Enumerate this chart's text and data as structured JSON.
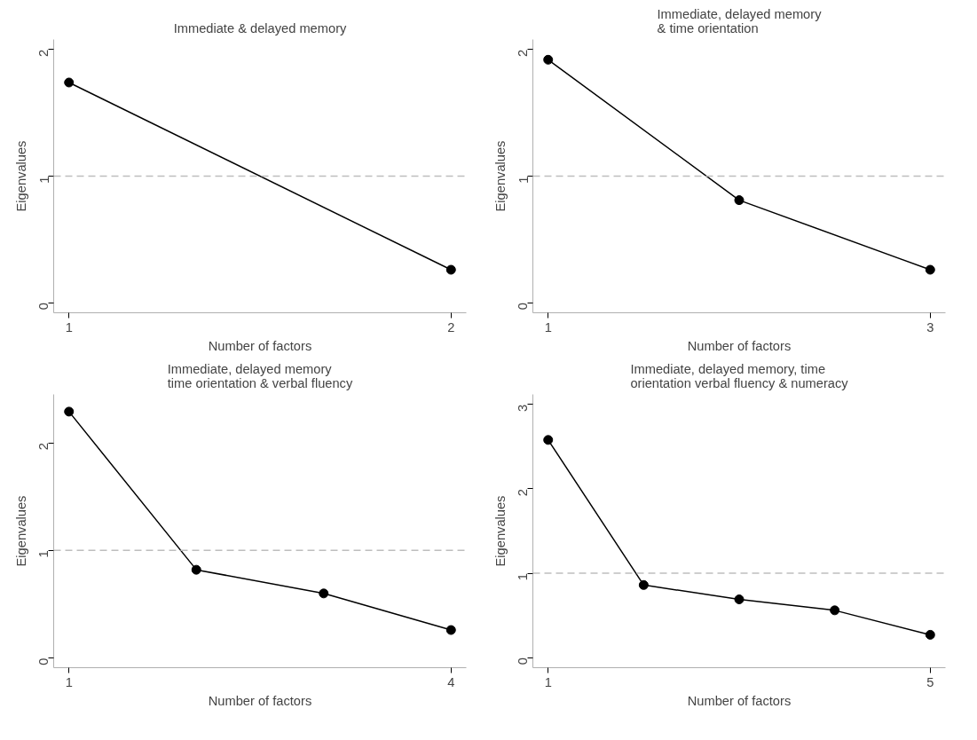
{
  "chart_data": [
    {
      "type": "line",
      "title": "Immediate & delayed memory",
      "xlabel": "Number of factors",
      "ylabel": "Eigenvalues",
      "x": [
        1,
        2
      ],
      "series": [
        {
          "color": "#000000",
          "values": [
            1.74,
            0.26
          ]
        }
      ],
      "marker": "circle",
      "line_style": "solid",
      "grid": false,
      "xlim": [
        0.96,
        2.04
      ],
      "xticks": [
        1,
        2
      ],
      "ylim": [
        -0.08,
        2.08
      ],
      "yticks": [
        0,
        1,
        2
      ],
      "ref_lines": [
        {
          "axis": "y",
          "value": 1,
          "color": "#bebebe",
          "line_style": "dashed"
        }
      ]
    },
    {
      "type": "line",
      "title": "Immediate, delayed memory\n& time orientation",
      "xlabel": "Number of factors",
      "ylabel": "Eigenvalues",
      "x": [
        1,
        2,
        3
      ],
      "series": [
        {
          "color": "#000000",
          "values": [
            1.92,
            0.81,
            0.26
          ]
        }
      ],
      "marker": "circle",
      "line_style": "solid",
      "grid": false,
      "xlim": [
        0.92,
        3.08
      ],
      "xticks": [
        1,
        3
      ],
      "ylim": [
        -0.08,
        2.08
      ],
      "yticks": [
        0,
        1,
        2
      ],
      "ref_lines": [
        {
          "axis": "y",
          "value": 1,
          "color": "#bebebe",
          "line_style": "dashed"
        }
      ]
    },
    {
      "type": "line",
      "title": "Immediate, delayed memory\ntime orientation & verbal fluency",
      "xlabel": "Number of factors",
      "ylabel": "Eigenvalues",
      "x": [
        1,
        2,
        3,
        4
      ],
      "series": [
        {
          "color": "#000000",
          "values": [
            2.29,
            0.82,
            0.6,
            0.26
          ]
        }
      ],
      "marker": "circle",
      "line_style": "solid",
      "grid": false,
      "xlim": [
        0.88,
        4.12
      ],
      "xticks": [
        1,
        4
      ],
      "ylim": [
        -0.09,
        2.45
      ],
      "yticks": [
        0,
        1,
        2
      ],
      "ref_lines": [
        {
          "axis": "y",
          "value": 1,
          "color": "#bebebe",
          "line_style": "dashed"
        }
      ]
    },
    {
      "type": "line",
      "title": "Immediate, delayed memory, time\norientation verbal fluency & numeracy",
      "xlabel": "Number of factors",
      "ylabel": "Eigenvalues",
      "x": [
        1,
        2,
        3,
        4,
        5
      ],
      "series": [
        {
          "color": "#000000",
          "values": [
            2.58,
            0.86,
            0.69,
            0.56,
            0.27
          ]
        }
      ],
      "marker": "circle",
      "line_style": "solid",
      "grid": false,
      "xlim": [
        0.84,
        5.16
      ],
      "xticks": [
        1,
        5
      ],
      "ylim": [
        -0.12,
        3.12
      ],
      "yticks": [
        0,
        1,
        2,
        3
      ],
      "ref_lines": [
        {
          "axis": "y",
          "value": 1,
          "color": "#bebebe",
          "line_style": "dashed"
        }
      ]
    }
  ]
}
